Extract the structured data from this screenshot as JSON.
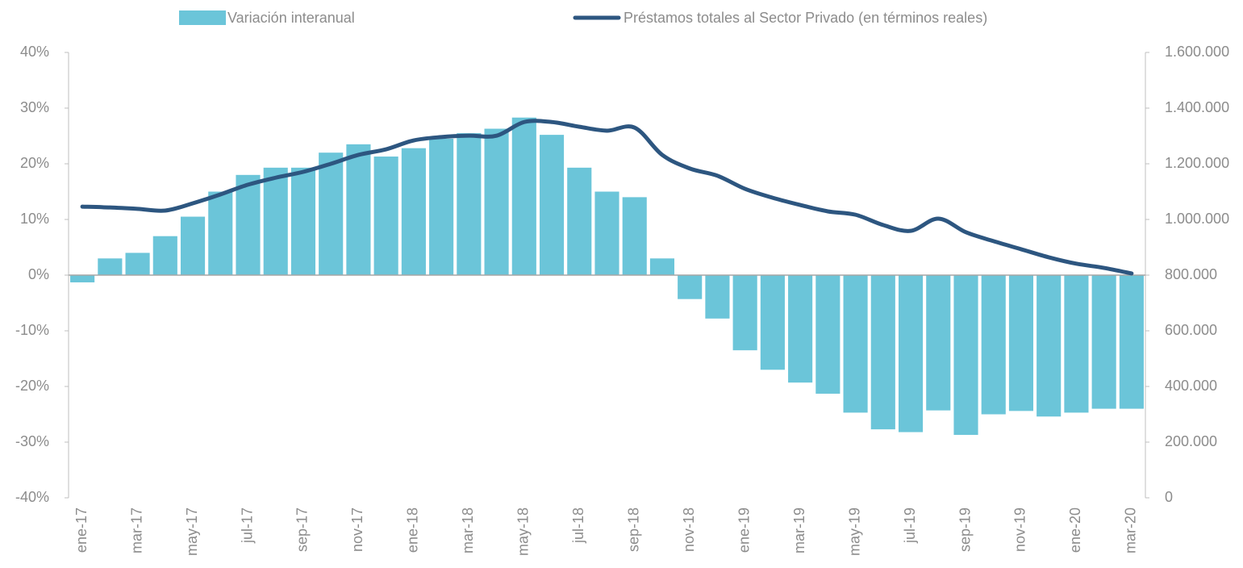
{
  "chart_data": {
    "type": "bar_line",
    "categories": [
      "ene-17",
      null,
      "mar-17",
      null,
      "may-17",
      null,
      "jul-17",
      null,
      "sep-17",
      null,
      "nov-17",
      null,
      "ene-18",
      null,
      "mar-18",
      null,
      "may-18",
      null,
      "jul-18",
      null,
      "sep-18",
      null,
      "nov-18",
      null,
      "ene-19",
      null,
      "mar-19",
      null,
      "may-19",
      null,
      "jul-19",
      null,
      "sep-19",
      null,
      "nov-19",
      null,
      "ene-20",
      null,
      "mar-20"
    ],
    "series": [
      {
        "name": "Variación interanual",
        "type": "bar",
        "color": "#6bc5d9",
        "axis": "y",
        "values": [
          -1.3,
          3,
          4,
          7,
          10.5,
          15,
          18,
          19.3,
          19.3,
          22,
          23.5,
          21.3,
          22.8,
          24.5,
          25.5,
          26.3,
          28.3,
          25.2,
          19.3,
          15,
          14,
          3,
          -4.3,
          -7.8,
          -13.5,
          -17,
          -19.3,
          -21.3,
          -24.7,
          -27.7,
          -28.2,
          -24.3,
          -28.7,
          -25,
          -24.4,
          -25.4,
          -24.7,
          -24,
          -24
        ]
      },
      {
        "name": "Préstamos totales al Sector Privado (en términos reales)",
        "type": "line",
        "color": "#2d5680",
        "axis": "y2",
        "values": [
          1046000,
          1043000,
          1038000,
          1032000,
          1058000,
          1090000,
          1125000,
          1150000,
          1171000,
          1200000,
          1232000,
          1252000,
          1284000,
          1296000,
          1301000,
          1301000,
          1350000,
          1350000,
          1333000,
          1319000,
          1330000,
          1232000,
          1183000,
          1157000,
          1110000,
          1078000,
          1052000,
          1029000,
          1017000,
          980000,
          959000,
          1003000,
          954000,
          922000,
          893000,
          864000,
          841000,
          826000,
          806000
        ]
      }
    ],
    "ylim": [
      -40,
      40
    ],
    "yticks": [
      {
        "value": -40,
        "label": "-40%"
      },
      {
        "value": -30,
        "label": "-30%"
      },
      {
        "value": -20,
        "label": "-20%"
      },
      {
        "value": -10,
        "label": "-10%"
      },
      {
        "value": 0,
        "label": "0%"
      },
      {
        "value": 10,
        "label": "10%"
      },
      {
        "value": 20,
        "label": "20%"
      },
      {
        "value": 30,
        "label": "30%"
      },
      {
        "value": 40,
        "label": "40%"
      }
    ],
    "y2lim": [
      0,
      1600000
    ],
    "y2ticks": [
      0,
      {
        "value": 200000,
        "label": "200.000"
      },
      {
        "value": 400000,
        "label": "400.000"
      },
      {
        "value": 600000,
        "label": "600.000"
      },
      {
        "value": 800000,
        "label": "800.000"
      },
      {
        "value": 1000000,
        "label": "1.000.000"
      },
      {
        "value": 1200000,
        "label": "1.200.000"
      },
      {
        "value": 1400000,
        "label": "1.400.000"
      },
      {
        "value": 1600000,
        "label": "1.600.000"
      }
    ],
    "legend": "top",
    "grid": false
  }
}
